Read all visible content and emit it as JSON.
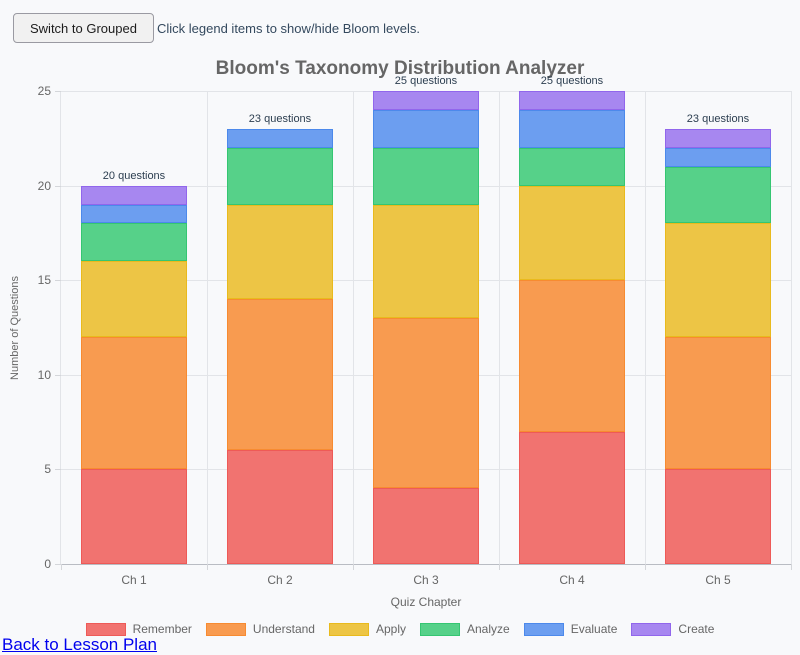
{
  "toolbar": {
    "switch_button_label": "Switch to Grouped",
    "hint": "Click legend items to show/hide Bloom levels."
  },
  "chart_data": {
    "type": "bar",
    "stacked": true,
    "title": "Bloom's Taxonomy Distribution Analyzer",
    "xlabel": "Quiz Chapter",
    "ylabel": "Number of Questions",
    "ylim": [
      0,
      25
    ],
    "yticks": [
      0,
      5,
      10,
      15,
      20,
      25
    ],
    "grid": true,
    "legend_position": "bottom",
    "categories": [
      "Ch 1",
      "Ch 2",
      "Ch 3",
      "Ch 4",
      "Ch 5"
    ],
    "bar_annotations": [
      "20 questions",
      "23 questions",
      "25 questions",
      "25 questions",
      "23 questions"
    ],
    "bar_totals": [
      20,
      23,
      25,
      25,
      23
    ],
    "series": [
      {
        "name": "Remember",
        "fill": "#f17370",
        "border": "#ee5a57",
        "values": [
          5,
          6,
          4,
          7,
          5
        ]
      },
      {
        "name": "Understand",
        "fill": "#f89b50",
        "border": "#f78b31",
        "values": [
          7,
          8,
          9,
          8,
          7
        ]
      },
      {
        "name": "Apply",
        "fill": "#edc545",
        "border": "#e9ba1d",
        "values": [
          4,
          5,
          6,
          5,
          6
        ]
      },
      {
        "name": "Analyze",
        "fill": "#56d189",
        "border": "#35c672",
        "values": [
          2,
          3,
          3,
          2,
          3
        ]
      },
      {
        "name": "Evaluate",
        "fill": "#6c9ef0",
        "border": "#4c89eb",
        "values": [
          1,
          1,
          2,
          2,
          1
        ]
      },
      {
        "name": "Create",
        "fill": "#a787f0",
        "border": "#9166ec",
        "values": [
          1,
          0,
          1,
          1,
          1
        ]
      }
    ]
  },
  "footer": {
    "back_link_label": "Back to Lesson Plan"
  }
}
